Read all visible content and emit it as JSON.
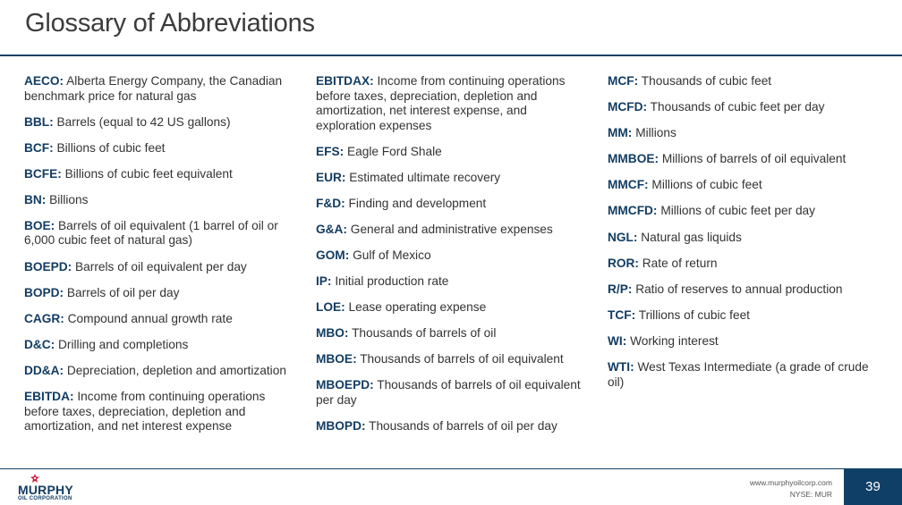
{
  "slide": {
    "title": "Glossary of Abbreviations",
    "page_number": "39"
  },
  "glossary": {
    "column1": [
      {
        "term": "AECO:",
        "definition": "Alberta Energy Company, the Canadian benchmark price for natural gas"
      },
      {
        "term": "BBL:",
        "definition": "Barrels (equal to 42 US gallons)"
      },
      {
        "term": "BCF:",
        "definition": "Billions of cubic feet"
      },
      {
        "term": "BCFE:",
        "definition": "Billions of cubic feet equivalent"
      },
      {
        "term": "BN:",
        "definition": "Billions"
      },
      {
        "term": "BOE:",
        "definition": "Barrels of oil equivalent (1 barrel of oil or 6,000 cubic feet of natural gas)"
      },
      {
        "term": "BOEPD:",
        "definition": "Barrels of oil equivalent per day"
      },
      {
        "term": "BOPD:",
        "definition": "Barrels of oil per day"
      },
      {
        "term": "CAGR:",
        "definition": "Compound annual growth rate"
      },
      {
        "term": "D&C:",
        "definition": "Drilling and completions"
      },
      {
        "term": "DD&A:",
        "definition": "Depreciation, depletion and amortization"
      },
      {
        "term": "EBITDA:",
        "definition": "Income from continuing operations before taxes, depreciation, depletion and amortization, and net interest expense"
      }
    ],
    "column2": [
      {
        "term": "EBITDAX:",
        "definition": "Income from continuing operations before taxes, depreciation, depletion and amortization, net interest expense, and exploration expenses"
      },
      {
        "term": "EFS:",
        "definition": "Eagle Ford Shale"
      },
      {
        "term": "EUR:",
        "definition": "Estimated ultimate recovery"
      },
      {
        "term": "F&D:",
        "definition": "Finding and development"
      },
      {
        "term": "G&A:",
        "definition": "General and administrative expenses"
      },
      {
        "term": "GOM:",
        "definition": "Gulf of Mexico"
      },
      {
        "term": "IP:",
        "definition": "Initial production rate"
      },
      {
        "term": "LOE:",
        "definition": "Lease operating expense"
      },
      {
        "term": "MBO:",
        "definition": "Thousands of barrels of oil"
      },
      {
        "term": "MBOE:",
        "definition": "Thousands of barrels of oil equivalent"
      },
      {
        "term": "MBOEPD:",
        "definition": "Thousands of barrels of oil equivalent per day"
      },
      {
        "term": "MBOPD:",
        "definition": "Thousands of barrels of oil per day"
      }
    ],
    "column3": [
      {
        "term": "MCF:",
        "definition": "Thousands of cubic feet"
      },
      {
        "term": "MCFD:",
        "definition": "Thousands of cubic feet per day"
      },
      {
        "term": "MM:",
        "definition": "Millions"
      },
      {
        "term": "MMBOE:",
        "definition": "Millions of barrels of oil equivalent"
      },
      {
        "term": "MMCF:",
        "definition": "Millions of cubic feet"
      },
      {
        "term": "MMCFD:",
        "definition": "Millions of cubic feet per day"
      },
      {
        "term": "NGL:",
        "definition": "Natural gas liquids"
      },
      {
        "term": "ROR:",
        "definition": "Rate of return"
      },
      {
        "term": "R/P:",
        "definition": "Ratio of reserves to annual production"
      },
      {
        "term": "TCF:",
        "definition": "Trillions of cubic feet"
      },
      {
        "term": "WI:",
        "definition": "Working interest"
      },
      {
        "term": "WTI:",
        "definition": "West Texas Intermediate (a grade of crude oil)"
      }
    ]
  },
  "footer": {
    "logo_name": "MURPHY",
    "logo_subtitle": "OIL CORPORATION",
    "logo_icon": "star-icon",
    "website": "www.murphyoilcorp.com",
    "ticker": "NYSE: MUR"
  },
  "colors": {
    "brand_navy": "#133d63",
    "rule": "#0f3f66",
    "logo_star": "#c8102e",
    "body_text": "#333333"
  }
}
